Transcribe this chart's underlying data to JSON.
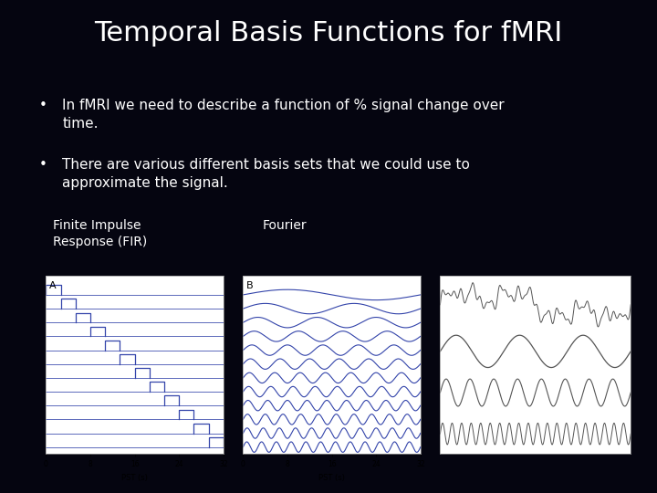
{
  "title": "Temporal Basis Functions for fMRI",
  "title_color": "#FFFFFF",
  "title_fontsize": 22,
  "bg_color": "#050510",
  "bullet1": "In fMRI we need to describe a function of % signal change over\ntime.",
  "bullet2": "There are various different basis sets that we could use to\napproximate the signal.",
  "bullet_color": "#FFFFFF",
  "bullet_fontsize": 11,
  "label_fir": "Finite Impulse\nResponse (FIR)",
  "label_fourier": "Fourier",
  "label_color": "#FFFFFF",
  "label_fontsize": 10,
  "fir_bg": "#FFFFFF",
  "fourier_bg": "#FFFFFF",
  "sinusoid_bg": "#FFFFFF",
  "n_fir_steps": 12,
  "n_fourier_waves": 12,
  "plot_line_color": "#3344AA",
  "sin_line_color": "#555555"
}
